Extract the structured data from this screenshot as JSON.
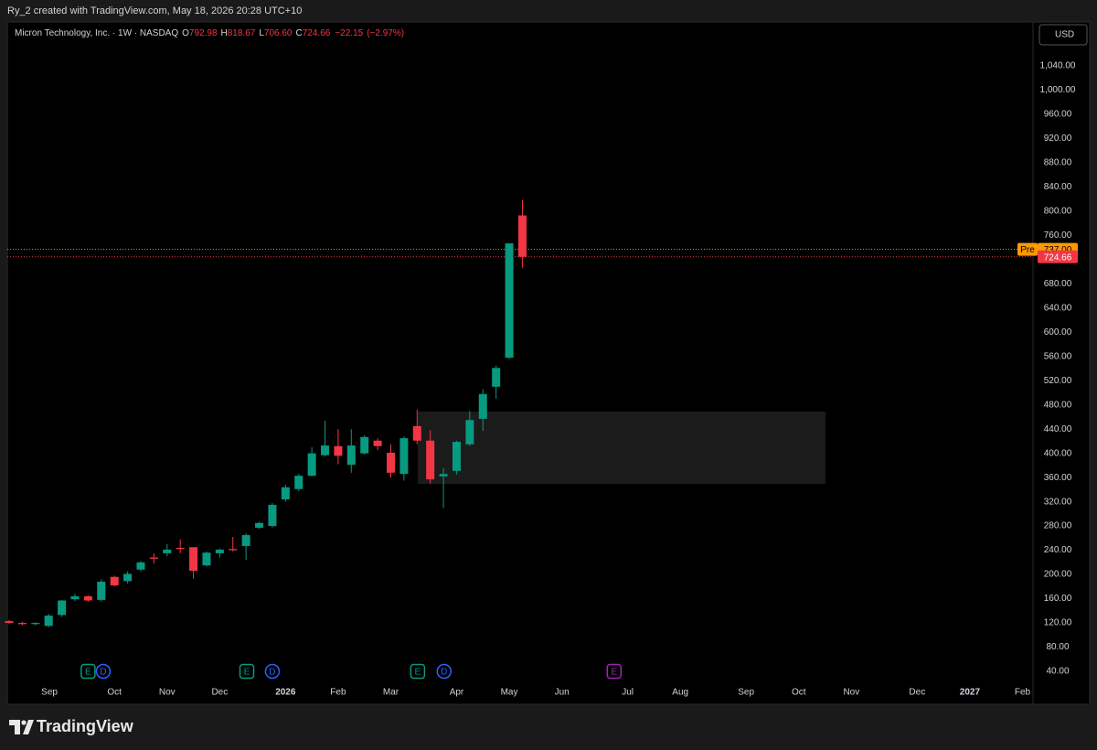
{
  "header": {
    "text": "Ry_2 created with TradingView.com, May 18, 2026 20:28 UTC+10"
  },
  "currency": "USD",
  "brand": "TradingView",
  "chart_data": {
    "type": "candlestick",
    "title": "Micron Technology, Inc. · 1W · NASDAQ",
    "legend": [
      {
        "key": "O",
        "value": 792.98
      },
      {
        "key": "H",
        "value": 818.67
      },
      {
        "key": "L",
        "value": 706.6,
        "label": "706.60"
      },
      {
        "key": "C",
        "value": 724.66
      }
    ],
    "change": {
      "value": -22.15,
      "label": "−22.15"
    },
    "change_pct": {
      "value": -2.97,
      "label": "(−2.97%)"
    },
    "x": [
      0,
      1,
      2,
      3,
      4,
      5,
      6,
      7,
      8,
      9,
      10,
      11,
      12,
      13,
      14,
      15,
      16,
      17,
      18,
      19,
      20,
      21,
      22,
      23,
      24,
      25,
      26,
      27,
      28,
      29,
      30,
      31,
      32,
      33,
      34,
      35,
      36,
      37,
      38,
      39
    ],
    "open": [
      123,
      120,
      118,
      115,
      133,
      159,
      164,
      158,
      196,
      189,
      208,
      228,
      235,
      244,
      245,
      215,
      235,
      242,
      247,
      277,
      280,
      324,
      341,
      363,
      397,
      412,
      381,
      400,
      421,
      401,
      366,
      445,
      421,
      362,
      371,
      415,
      457,
      510,
      558,
      792.98
    ],
    "high": [
      125,
      122,
      121,
      135,
      158,
      168,
      166,
      192,
      198,
      205,
      222,
      235,
      250,
      258,
      245,
      238,
      243,
      262,
      268,
      287,
      318,
      348,
      366,
      410,
      454,
      440,
      440,
      430,
      425,
      415,
      428,
      472,
      438,
      376,
      421,
      470,
      506,
      545,
      745,
      818.67
    ],
    "low": [
      118,
      116,
      116,
      113,
      130,
      156,
      155,
      155,
      180,
      185,
      205,
      218,
      230,
      235,
      193,
      213,
      228,
      238,
      224,
      275,
      278,
      320,
      338,
      362,
      395,
      382,
      368,
      398,
      405,
      360,
      355,
      415,
      350,
      310,
      365,
      412,
      437,
      490,
      556,
      706.6
    ],
    "close": [
      120,
      118,
      120,
      132,
      157,
      164,
      157,
      188,
      182,
      201,
      220,
      226,
      241,
      242,
      206,
      236,
      241,
      240,
      265,
      285,
      315,
      344,
      363,
      400,
      413,
      396,
      413,
      427,
      412,
      368,
      425,
      421,
      357,
      366,
      419,
      455,
      498,
      541,
      746.81,
      724.66
    ],
    "up_color": "#089981",
    "down_color": "#f23645",
    "xlim": [
      -0.14,
      77.8
    ],
    "ylim": [
      -14.4,
      1112.5
    ],
    "xticks": [
      {
        "value": 3.06,
        "label": "Sep"
      },
      {
        "value": 8,
        "label": "Oct"
      },
      {
        "value": 12,
        "label": "Nov"
      },
      {
        "value": 16,
        "label": "Dec"
      },
      {
        "value": 21,
        "label": "2026"
      },
      {
        "value": 25,
        "label": "Feb"
      },
      {
        "value": 29,
        "label": "Mar"
      },
      {
        "value": 34,
        "label": "Apr"
      },
      {
        "value": 38,
        "label": "May"
      },
      {
        "value": 42,
        "label": "Jun"
      },
      {
        "value": 47,
        "label": "Jul"
      },
      {
        "value": 51,
        "label": "Aug"
      },
      {
        "value": 56,
        "label": "Sep"
      },
      {
        "value": 60,
        "label": "Oct"
      },
      {
        "value": 64,
        "label": "Nov"
      },
      {
        "value": 69,
        "label": "Dec"
      },
      {
        "value": 73,
        "label": "2027"
      },
      {
        "value": 77,
        "label": "Feb"
      }
    ],
    "yticks": [
      {
        "value": 40,
        "label": "40.00"
      },
      {
        "value": 80,
        "label": "80.00"
      },
      {
        "value": 120,
        "label": "120.00"
      },
      {
        "value": 160,
        "label": "160.00"
      },
      {
        "value": 200,
        "label": "200.00"
      },
      {
        "value": 240,
        "label": "240.00"
      },
      {
        "value": 280,
        "label": "280.00"
      },
      {
        "value": 320,
        "label": "320.00"
      },
      {
        "value": 360,
        "label": "360.00"
      },
      {
        "value": 400,
        "label": "400.00"
      },
      {
        "value": 440,
        "label": "440.00"
      },
      {
        "value": 480,
        "label": "480.00"
      },
      {
        "value": 520,
        "label": "520.00"
      },
      {
        "value": 560,
        "label": "560.00"
      },
      {
        "value": 600,
        "label": "600.00"
      },
      {
        "value": 640,
        "label": "640.00"
      },
      {
        "value": 680,
        "label": "680.00"
      },
      {
        "value": 760,
        "label": "760.00"
      },
      {
        "value": 800,
        "label": "800.00"
      },
      {
        "value": 840,
        "label": "840.00"
      },
      {
        "value": 880,
        "label": "880.00"
      },
      {
        "value": 920,
        "label": "920.00"
      },
      {
        "value": 960,
        "label": "960.00"
      },
      {
        "value": 1000,
        "label": "1,000.00"
      },
      {
        "value": 1040,
        "label": "1,040.00"
      }
    ],
    "grid": false,
    "pre_market": {
      "tag": "Pre",
      "value": 737,
      "label": "737.00",
      "color": "#ff9800"
    },
    "last_price": {
      "value": 724.66,
      "color": "#f23645"
    },
    "events": [
      {
        "x": 6,
        "label": "E",
        "shape": "square",
        "color": "#089981"
      },
      {
        "x": 7.15,
        "label": "D",
        "shape": "circle",
        "color": "#2962ff"
      },
      {
        "x": 18.06,
        "label": "E",
        "shape": "square",
        "color": "#089981"
      },
      {
        "x": 20,
        "label": "D",
        "shape": "circle",
        "color": "#2962ff"
      },
      {
        "x": 31.04,
        "label": "E",
        "shape": "square",
        "color": "#089981"
      },
      {
        "x": 33.05,
        "label": "D",
        "shape": "circle",
        "color": "#2962ff"
      },
      {
        "x": 45.97,
        "label": "E",
        "shape": "square",
        "color": "#9c27b0"
      }
    ]
  }
}
